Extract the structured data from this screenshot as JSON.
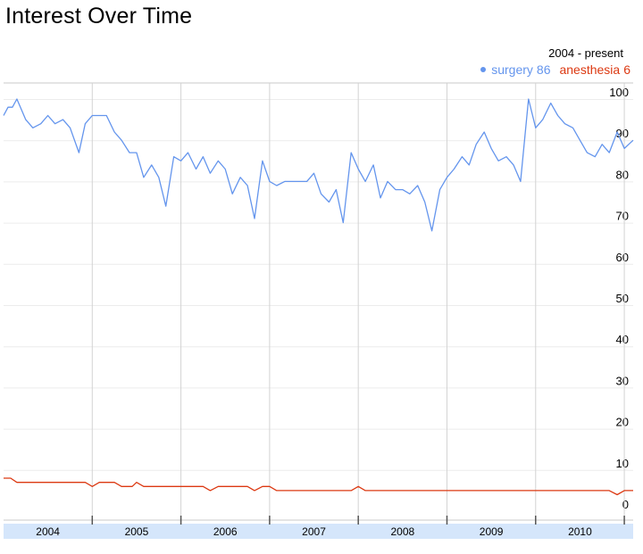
{
  "chart_data": {
    "type": "line",
    "title": "Interest Over Time",
    "range_label": "2004 - present",
    "xlabel": "",
    "ylabel": "",
    "ylim": [
      0,
      100
    ],
    "y_ticks": [
      0,
      10,
      20,
      30,
      40,
      50,
      60,
      70,
      80,
      90,
      100
    ],
    "year_labels": [
      "2004",
      "2005",
      "2006",
      "2007",
      "2008",
      "2009",
      "2010"
    ],
    "x_start": 2004.0,
    "x_end": 2011.1,
    "grid": true,
    "legend_position": "top-right",
    "series": [
      {
        "name": "surgery",
        "summary_value": "86",
        "color": "#6495ed",
        "x": [
          2004.0,
          2004.05,
          2004.1,
          2004.15,
          2004.25,
          2004.33,
          2004.42,
          2004.5,
          2004.58,
          2004.67,
          2004.75,
          2004.85,
          2004.92,
          2005.0,
          2005.08,
          2005.16,
          2005.25,
          2005.33,
          2005.42,
          2005.5,
          2005.58,
          2005.67,
          2005.75,
          2005.83,
          2005.92,
          2006.0,
          2006.08,
          2006.17,
          2006.25,
          2006.33,
          2006.42,
          2006.5,
          2006.58,
          2006.67,
          2006.75,
          2006.83,
          2006.92,
          2007.0,
          2007.08,
          2007.17,
          2007.25,
          2007.33,
          2007.42,
          2007.5,
          2007.58,
          2007.67,
          2007.75,
          2007.83,
          2007.92,
          2008.0,
          2008.08,
          2008.17,
          2008.25,
          2008.33,
          2008.42,
          2008.5,
          2008.58,
          2008.67,
          2008.75,
          2008.83,
          2008.92,
          2009.0,
          2009.08,
          2009.17,
          2009.25,
          2009.33,
          2009.42,
          2009.5,
          2009.58,
          2009.67,
          2009.75,
          2009.83,
          2009.92,
          2010.0,
          2010.08,
          2010.17,
          2010.25,
          2010.33,
          2010.42,
          2010.5,
          2010.58,
          2010.67,
          2010.75,
          2010.83,
          2010.92,
          2011.0,
          2011.1
        ],
        "values": [
          96,
          98,
          98,
          100,
          95,
          93,
          94,
          96,
          94,
          95,
          93,
          87,
          94,
          96,
          96,
          96,
          92,
          90,
          87,
          87,
          81,
          84,
          81,
          74,
          86,
          85,
          87,
          83,
          86,
          82,
          85,
          83,
          77,
          81,
          79,
          71,
          85,
          80,
          79,
          80,
          80,
          80,
          80,
          82,
          77,
          75,
          78,
          70,
          87,
          83,
          80,
          84,
          76,
          80,
          78,
          78,
          77,
          79,
          75,
          68,
          78,
          81,
          83,
          86,
          84,
          89,
          92,
          88,
          85,
          86,
          84,
          80,
          100,
          93,
          95,
          99,
          96,
          94,
          93,
          90,
          87,
          86,
          89,
          87,
          92,
          88,
          90
        ]
      },
      {
        "name": "anesthesia",
        "summary_value": "6",
        "color": "#dc3912",
        "x": [
          2004.0,
          2004.08,
          2004.15,
          2004.25,
          2004.5,
          2004.75,
          2004.92,
          2005.0,
          2005.08,
          2005.25,
          2005.33,
          2005.45,
          2005.5,
          2005.58,
          2005.67,
          2005.75,
          2005.92,
          2006.0,
          2006.25,
          2006.33,
          2006.42,
          2006.5,
          2006.58,
          2006.75,
          2006.83,
          2006.92,
          2007.0,
          2007.08,
          2007.17,
          2007.25,
          2007.5,
          2007.75,
          2007.83,
          2007.92,
          2008.0,
          2008.08,
          2008.25,
          2008.5,
          2008.75,
          2009.0,
          2009.25,
          2009.5,
          2009.75,
          2010.0,
          2010.25,
          2010.5,
          2010.67,
          2010.83,
          2010.92,
          2011.0,
          2011.1
        ],
        "values": [
          8,
          8,
          7,
          7,
          7,
          7,
          7,
          6,
          7,
          7,
          6,
          6,
          7,
          6,
          6,
          6,
          6,
          6,
          6,
          5,
          6,
          6,
          6,
          6,
          5,
          6,
          6,
          5,
          5,
          5,
          5,
          5,
          5,
          5,
          6,
          5,
          5,
          5,
          5,
          5,
          5,
          5,
          5,
          5,
          5,
          5,
          5,
          5,
          4,
          5,
          5
        ]
      }
    ]
  }
}
